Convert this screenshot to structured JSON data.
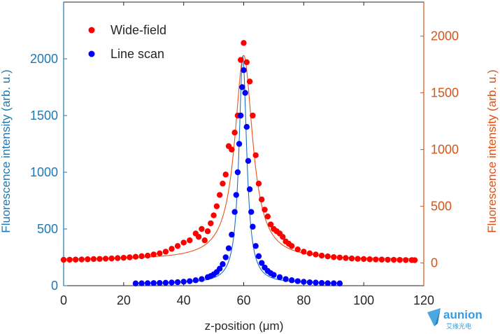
{
  "chart_data": {
    "type": "scatter",
    "xlabel": "z-position (μm)",
    "ylabel_left": "Fluorescence intensity (arb. u.)",
    "ylabel_right": "Fluorescence intensity (arb. u.)",
    "xlim": [
      0,
      120
    ],
    "ylim_left": [
      0,
      2500
    ],
    "ylim_right": [
      -200,
      2300
    ],
    "x_ticks": [
      0,
      20,
      40,
      60,
      80,
      100,
      120
    ],
    "y_ticks_left": [
      0,
      500,
      1000,
      1500,
      2000
    ],
    "y_ticks_right": [
      0,
      500,
      1000,
      1500,
      2000
    ],
    "legend_position": "top-left",
    "colors": {
      "left_axis": "#1f77b4",
      "right_axis": "#d95319",
      "wide_field": "#ff0000",
      "line_scan": "#0000ff",
      "fit_wide": "#e8541a",
      "fit_line": "#1f6fc6"
    },
    "series": [
      {
        "name": "Wide-field",
        "axis": "right",
        "marker": "circle",
        "x": [
          0,
          2,
          4,
          6,
          8,
          10,
          12,
          14,
          16,
          18,
          20,
          22,
          24,
          26,
          28,
          30,
          32,
          34,
          36,
          38,
          40,
          42,
          44,
          45,
          46,
          47,
          48,
          49,
          50,
          51,
          52,
          53,
          54,
          55,
          56,
          57,
          58,
          59,
          60,
          61,
          62,
          63,
          64,
          65,
          66,
          67,
          68,
          69,
          70,
          71,
          72,
          73,
          74,
          75,
          76,
          78,
          80,
          82,
          84,
          86,
          88,
          90,
          92,
          94,
          96,
          98,
          100,
          102,
          104,
          106,
          108,
          110,
          112,
          114,
          116,
          117
        ],
        "y": [
          28,
          29,
          30,
          31,
          33,
          35,
          36,
          38,
          40,
          43,
          46,
          50,
          55,
          60,
          65,
          75,
          85,
          100,
          125,
          150,
          180,
          200,
          260,
          230,
          300,
          200,
          280,
          350,
          420,
          500,
          600,
          700,
          780,
          1030,
          1000,
          1150,
          1300,
          1790,
          1940,
          1770,
          1600,
          1300,
          950,
          700,
          560,
          470,
          410,
          340,
          300,
          280,
          260,
          230,
          190,
          170,
          150,
          120,
          100,
          85,
          75,
          65,
          58,
          52,
          48,
          44,
          40,
          37,
          35,
          33,
          31,
          30,
          29,
          28,
          27,
          26,
          26,
          25
        ]
      },
      {
        "name": "Line scan",
        "axis": "left",
        "marker": "circle",
        "x": [
          24,
          26,
          28,
          30,
          32,
          34,
          36,
          38,
          40,
          42,
          44,
          46,
          48,
          49,
          50,
          51,
          52,
          53,
          54,
          55,
          56,
          57,
          57.5,
          58,
          58.5,
          59,
          59.5,
          60,
          60.5,
          61,
          61.5,
          62,
          62.5,
          63,
          64,
          65,
          66,
          67,
          68,
          69,
          70,
          72,
          74,
          76,
          78,
          80,
          82,
          84,
          86,
          88,
          90,
          92
        ],
        "y": [
          20,
          21,
          22,
          23,
          24,
          26,
          28,
          31,
          35,
          40,
          48,
          58,
          75,
          85,
          100,
          120,
          150,
          190,
          250,
          330,
          450,
          650,
          800,
          1000,
          1250,
          1500,
          1750,
          1900,
          1700,
          1400,
          1100,
          850,
          650,
          520,
          350,
          260,
          200,
          160,
          130,
          110,
          95,
          75,
          58,
          48,
          40,
          34,
          30,
          27,
          24,
          22,
          21,
          20
        ]
      }
    ],
    "fits": [
      {
        "series": "Wide-field",
        "axis": "right",
        "center": 60,
        "amplitude": 1800,
        "gamma": 3.6,
        "base": 30
      },
      {
        "series": "Line scan",
        "axis": "left",
        "center": 59.7,
        "amplitude": 2000,
        "gamma": 1.55,
        "base": 20
      }
    ]
  },
  "logo": {
    "brand": "aunion",
    "tagline": "艾缘光电"
  }
}
